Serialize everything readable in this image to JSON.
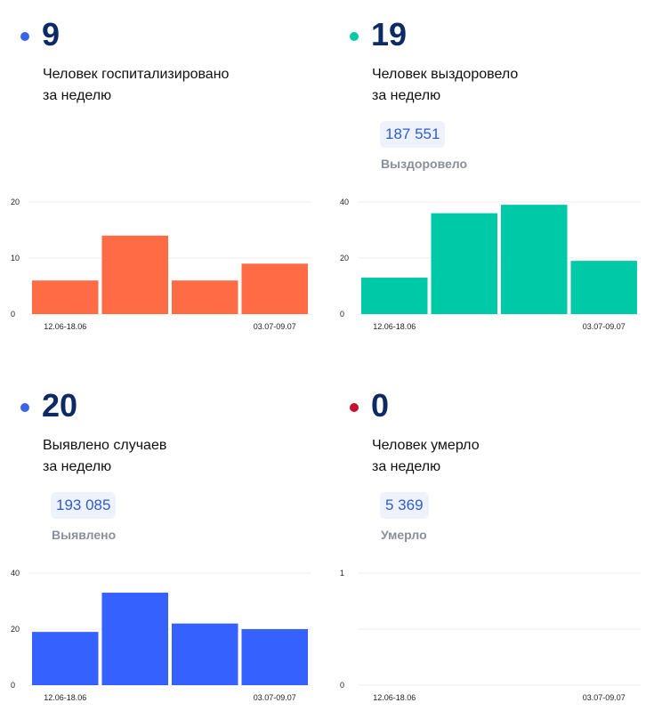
{
  "panels": [
    {
      "id": "hospitalized",
      "value": "9",
      "dot_color": "#3b63e6",
      "desc_line1": "Человек госпитализировано",
      "desc_line2": "за неделю",
      "pill_value": "",
      "pill_label": "",
      "bar_color": "#ff6b45"
    },
    {
      "id": "recovered",
      "value": "19",
      "dot_color": "#00c9a7",
      "desc_line1": "Человек выздоровело",
      "desc_line2": "за неделю",
      "pill_value": "187 551",
      "pill_label": "Выздоровело",
      "bar_color": "#00c9a7"
    },
    {
      "id": "detected",
      "value": "20",
      "dot_color": "#3b63e6",
      "desc_line1": "Выявлено случаев",
      "desc_line2": "за неделю",
      "pill_value": "193 085",
      "pill_label": "Выявлено",
      "bar_color": "#3461ff"
    },
    {
      "id": "died",
      "value": "0",
      "dot_color": "#c8102e",
      "desc_line1": "Человек умерло",
      "desc_line2": "за неделю",
      "pill_value": "5 369",
      "pill_label": "Умерло",
      "bar_color": "#3461ff"
    }
  ],
  "chart_data": [
    {
      "type": "bar",
      "categories": [
        "12.06-18.06",
        "",
        "",
        "03.07-09.07"
      ],
      "values": [
        6,
        14,
        6,
        9
      ],
      "ylim": [
        0,
        20
      ],
      "yticks": [
        0,
        10,
        20
      ],
      "color": "#ff6b45",
      "grid": true
    },
    {
      "type": "bar",
      "categories": [
        "12.06-18.06",
        "",
        "",
        "03.07-09.07"
      ],
      "values": [
        13,
        36,
        39,
        19
      ],
      "ylim": [
        0,
        40
      ],
      "yticks": [
        0,
        20,
        40
      ],
      "color": "#00c9a7",
      "grid": true
    },
    {
      "type": "bar",
      "categories": [
        "12.06-18.06",
        "",
        "",
        "03.07-09.07"
      ],
      "values": [
        19,
        33,
        22,
        20
      ],
      "ylim": [
        0,
        40
      ],
      "yticks": [
        0,
        20,
        40
      ],
      "color": "#3461ff",
      "grid": true
    },
    {
      "type": "bar",
      "categories": [
        "12.06-18.06",
        "",
        "",
        "03.07-09.07"
      ],
      "values": [
        0,
        0,
        0,
        0
      ],
      "ylim": [
        0,
        1
      ],
      "yticks": [
        0,
        1
      ],
      "color": "#3461ff",
      "grid": true
    }
  ]
}
